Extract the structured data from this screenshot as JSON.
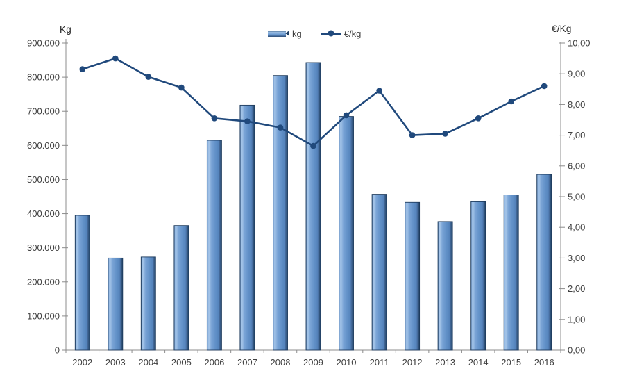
{
  "legend": {
    "bar_label": "kg",
    "line_label": "€/kg"
  },
  "chart_data": {
    "type": "combo",
    "title": "",
    "categories": [
      "2002",
      "2003",
      "2004",
      "2005",
      "2006",
      "2007",
      "2008",
      "2009",
      "2010",
      "2011",
      "2012",
      "2013",
      "2014",
      "2015",
      "2016"
    ],
    "series": [
      {
        "name": "kg",
        "type": "bar",
        "axis": "left",
        "values": [
          395000,
          270000,
          273000,
          365000,
          615000,
          718000,
          805000,
          843000,
          685000,
          457000,
          433000,
          377000,
          435000,
          455000,
          515000
        ]
      },
      {
        "name": "€/kg",
        "type": "line",
        "axis": "right",
        "values": [
          9.15,
          9.5,
          8.9,
          8.55,
          7.55,
          7.45,
          7.25,
          6.65,
          7.65,
          8.45,
          7.0,
          7.05,
          7.55,
          8.1,
          8.6
        ]
      }
    ],
    "left_axis": {
      "title": "Kg",
      "min": 0,
      "max": 900000,
      "step": 100000,
      "tick_labels": [
        "0",
        "100.000",
        "200.000",
        "300.000",
        "400.000",
        "500.000",
        "600.000",
        "700.000",
        "800.000",
        "900.000"
      ]
    },
    "right_axis": {
      "title": "€/Kg",
      "min": 0,
      "max": 10,
      "step": 1,
      "tick_labels": [
        "0,00",
        "1,00",
        "2,00",
        "3,00",
        "4,00",
        "5,00",
        "6,00",
        "7,00",
        "8,00",
        "9,00",
        "10,00"
      ]
    },
    "legend_position": "top-center",
    "grid": false,
    "colors": {
      "bar_fill": "#6392c9",
      "bar_highlight": "#a6c6e9",
      "bar_shadow": "#2e5076",
      "bar_border": "#1d3a5c",
      "line": "#20497c",
      "axis_line": "#8c8c8c",
      "label_text": "#3f3f3f"
    }
  }
}
